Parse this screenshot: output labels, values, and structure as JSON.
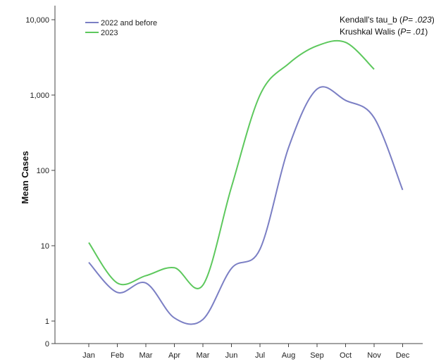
{
  "chart_data": {
    "type": "line",
    "ylabel": "Mean Cases",
    "xlabel": "",
    "yscale": "log",
    "ylim": [
      0,
      10000
    ],
    "yticks": [
      {
        "value": 0,
        "label": "0"
      },
      {
        "value": 1,
        "label": "1"
      },
      {
        "value": 10,
        "label": "10"
      },
      {
        "value": 100,
        "label": "100"
      },
      {
        "value": 1000,
        "label": "1,000"
      },
      {
        "value": 10000,
        "label": "10,000"
      }
    ],
    "categories": [
      "Jan",
      "Feb",
      "Mar",
      "Apr",
      "Mar",
      "Jun",
      "Jul",
      "Aug",
      "Sep",
      "Oct",
      "Nov",
      "Dec"
    ],
    "series": [
      {
        "name": "2022 and before",
        "color": "#7b7fc4",
        "values": [
          6,
          2.4,
          3.2,
          1.1,
          1.05,
          5,
          9,
          200,
          1200,
          850,
          500,
          55
        ]
      },
      {
        "name": "2023",
        "color": "#5dc85d",
        "values": [
          11,
          3.2,
          4,
          5.1,
          3,
          60,
          1000,
          2600,
          4500,
          5000,
          2200,
          null
        ]
      }
    ],
    "annotations": [
      {
        "parts": [
          {
            "text": "Kendall's tau_b (",
            "italic": false
          },
          {
            "text": "P= .023",
            "italic": true
          },
          {
            "text": ")",
            "italic": false
          }
        ]
      },
      {
        "parts": [
          {
            "text": "Krushkal Walis (",
            "italic": false
          },
          {
            "text": "P= .01",
            "italic": true
          },
          {
            "text": ")",
            "italic": false
          }
        ]
      }
    ],
    "legend_position": "top-left",
    "grid": false
  }
}
